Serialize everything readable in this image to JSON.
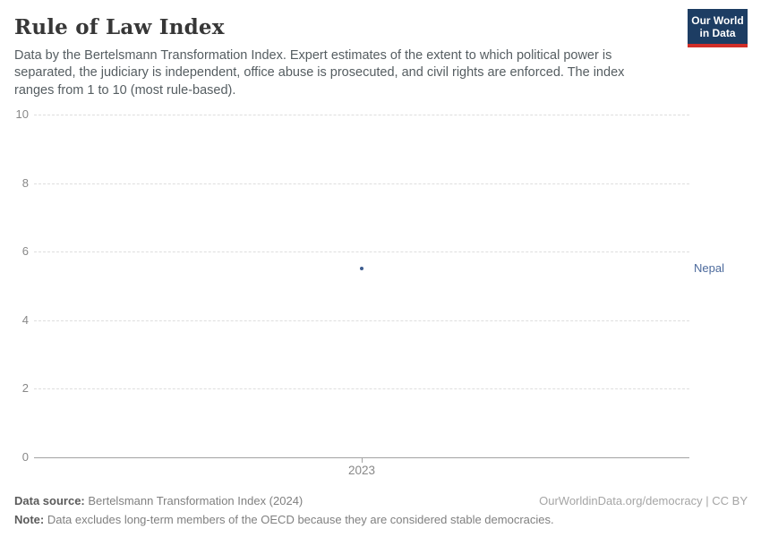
{
  "header": {
    "title": "Rule of Law Index",
    "subtitle": "Data by the Bertelsmann Transformation Index. Expert estimates of the extent to which political power is separated, the judiciary is independent, office abuse is prosecuted, and civil rights are enforced. The index ranges from 1 to 10 (most rule-based).",
    "logo": {
      "line1": "Our World",
      "line2": "in Data"
    }
  },
  "chart_data": {
    "type": "scatter",
    "title": "Rule of Law Index",
    "series": [
      {
        "name": "Nepal",
        "x": [
          2023
        ],
        "y": [
          5.5
        ]
      }
    ],
    "x_ticks": [
      "2023"
    ],
    "y_ticks": [
      0,
      2,
      4,
      6,
      8,
      10
    ],
    "ylim": [
      0,
      10
    ],
    "xlabel": "",
    "ylabel": "",
    "grid": "horizontal-dashed",
    "legend_position": "entity-label-right"
  },
  "colors": {
    "logo_bg": "#1d3d63",
    "logo_underline": "#d12e28",
    "entity": "#4c6a9c",
    "point": "#3d5c8f",
    "gridline": "#dedede",
    "axis": "#a3a3a3",
    "tick_label": "#888888"
  },
  "footer": {
    "source_label": "Data source:",
    "source_text": " Bertelsmann Transformation Index (2024)",
    "attribution": "OurWorldinData.org/democracy | CC BY",
    "note_label": "Note:",
    "note_text": " Data excludes long-term members of the OECD because they are considered stable democracies."
  }
}
